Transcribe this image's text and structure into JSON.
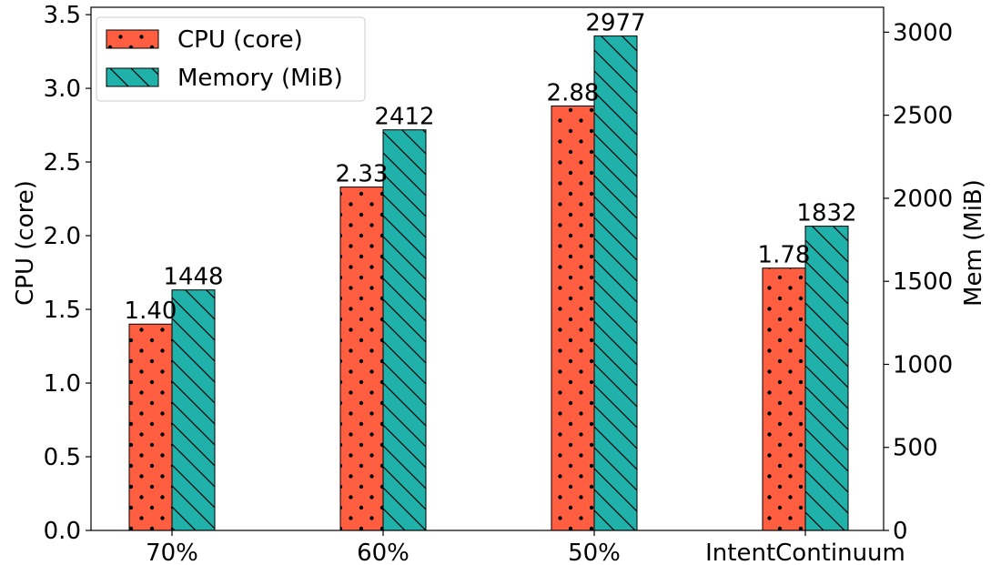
{
  "chart_data": {
    "type": "bar",
    "categories": [
      "70%",
      "60%",
      "50%",
      "IntentContinuum"
    ],
    "series": [
      {
        "name": "CPU (core)",
        "axis": "left",
        "color": "#ff5e41",
        "pattern": "dots",
        "values": [
          1.4,
          2.33,
          2.88,
          1.78
        ],
        "labels": [
          "1.40",
          "2.33",
          "2.88",
          "1.78"
        ]
      },
      {
        "name": "Memory (MiB)",
        "axis": "right",
        "color": "#20b2aa",
        "pattern": "diagonal",
        "values": [
          1448,
          2412,
          2977,
          1832
        ],
        "labels": [
          "1448",
          "2412",
          "2977",
          "1832"
        ]
      }
    ],
    "ylabel": "CPU (core)",
    "y2label": "Mem (MiB)",
    "ylim": [
      0,
      3.55
    ],
    "y2lim": [
      0,
      3150
    ],
    "yticks": [
      0.0,
      0.5,
      1.0,
      1.5,
      2.0,
      2.5,
      3.0,
      3.5
    ],
    "ytick_labels": [
      "0.0",
      "0.5",
      "1.0",
      "1.5",
      "2.0",
      "2.5",
      "3.0",
      "3.5"
    ],
    "y2ticks": [
      0,
      500,
      1000,
      1500,
      2000,
      2500,
      3000
    ],
    "y2tick_labels": [
      "0",
      "500",
      "1000",
      "1500",
      "2000",
      "2500",
      "3000"
    ],
    "legend_position": "top-left",
    "grid": false
  }
}
